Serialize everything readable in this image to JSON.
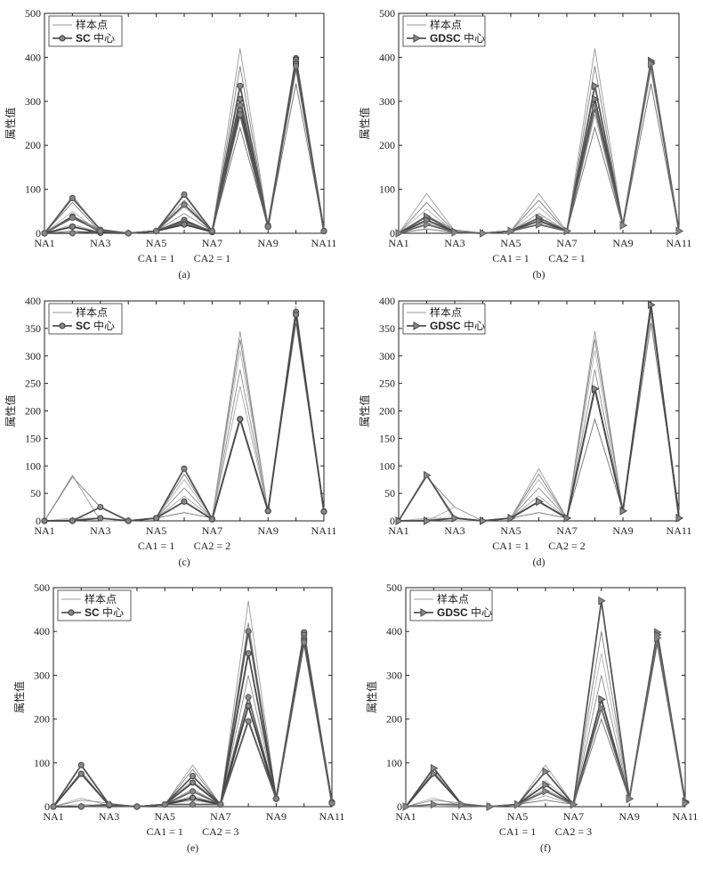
{
  "figure_caption": "",
  "chart_data": [
    {
      "type": "line",
      "caption": "(a)",
      "ylabel": "属性值",
      "ylim": [
        0,
        500
      ],
      "yticks": [
        0,
        100,
        200,
        300,
        400,
        500
      ],
      "xlabels": [
        "NA1",
        "NA3",
        "NA5",
        "NA7",
        "NA9",
        "NA11"
      ],
      "cat_notes": [
        "CA1 = 1",
        "CA2 = 1"
      ],
      "legend": {
        "sample": "样本点",
        "center_prefix": "SC",
        "center_suffix": "中心"
      },
      "center_marker": "circle",
      "sample_series": [
        [
          0,
          85,
          5,
          0,
          5,
          90,
          5,
          420,
          18,
          390,
          5
        ],
        [
          0,
          70,
          3,
          0,
          5,
          75,
          3,
          380,
          15,
          385,
          5
        ],
        [
          0,
          50,
          2,
          0,
          5,
          60,
          5,
          340,
          15,
          380,
          5
        ],
        [
          0,
          40,
          8,
          0,
          5,
          45,
          5,
          300,
          18,
          375,
          5
        ],
        [
          0,
          20,
          2,
          0,
          5,
          30,
          3,
          270,
          15,
          370,
          5
        ],
        [
          0,
          5,
          1,
          0,
          5,
          20,
          5,
          240,
          15,
          340,
          5
        ]
      ],
      "center_series": [
        [
          0,
          80,
          8,
          0,
          5,
          88,
          5,
          335,
          15,
          398,
          5
        ],
        [
          0,
          38,
          3,
          0,
          5,
          30,
          3,
          305,
          15,
          395,
          5
        ],
        [
          0,
          35,
          5,
          0,
          5,
          25,
          5,
          290,
          18,
          390,
          5
        ],
        [
          0,
          15,
          1,
          0,
          5,
          20,
          3,
          280,
          15,
          385,
          5
        ],
        [
          0,
          0,
          5,
          0,
          5,
          65,
          5,
          270,
          15,
          380,
          5
        ]
      ]
    },
    {
      "type": "line",
      "caption": "(b)",
      "ylabel": "属性值",
      "ylim": [
        0,
        500
      ],
      "yticks": [
        0,
        100,
        200,
        300,
        400,
        500
      ],
      "xlabels": [
        "NA1",
        "NA3",
        "NA5",
        "NA7",
        "NA9",
        "NA11"
      ],
      "cat_notes": [
        "CA1 = 1",
        "CA2 = 1"
      ],
      "legend": {
        "sample": "样本点",
        "center_prefix": "GDSC",
        "center_suffix": "中心"
      },
      "center_marker": "triangle",
      "sample_series": [
        [
          0,
          90,
          5,
          0,
          5,
          90,
          5,
          420,
          18,
          390,
          5
        ],
        [
          0,
          70,
          3,
          0,
          5,
          75,
          3,
          380,
          15,
          385,
          5
        ],
        [
          0,
          55,
          2,
          0,
          5,
          60,
          5,
          340,
          15,
          380,
          5
        ],
        [
          0,
          40,
          8,
          0,
          5,
          45,
          5,
          300,
          18,
          375,
          5
        ],
        [
          0,
          25,
          2,
          0,
          5,
          30,
          3,
          270,
          15,
          370,
          5
        ],
        [
          0,
          10,
          1,
          0,
          5,
          20,
          5,
          240,
          15,
          340,
          5
        ]
      ],
      "center_series": [
        [
          0,
          38,
          3,
          0,
          5,
          35,
          5,
          335,
          18,
          392,
          5
        ],
        [
          0,
          30,
          3,
          0,
          5,
          28,
          5,
          305,
          18,
          388,
          5
        ],
        [
          0,
          20,
          2,
          0,
          5,
          20,
          5,
          285,
          18,
          385,
          5
        ]
      ]
    },
    {
      "type": "line",
      "caption": "(c)",
      "ylabel": "属性值",
      "ylim": [
        0,
        400
      ],
      "yticks": [
        0,
        50,
        100,
        150,
        200,
        250,
        300,
        350,
        400
      ],
      "xlabels": [
        "NA1",
        "NA3",
        "NA5",
        "NA7",
        "NA9",
        "NA11"
      ],
      "cat_notes": [
        "CA1 = 1",
        "CA2 = 2"
      ],
      "legend": {
        "sample": "样本点",
        "center_prefix": "SC",
        "center_suffix": "中心"
      },
      "center_marker": "circle",
      "sample_series": [
        [
          0,
          83,
          0,
          0,
          5,
          95,
          5,
          345,
          18,
          390,
          15
        ],
        [
          0,
          80,
          25,
          0,
          5,
          85,
          5,
          330,
          18,
          385,
          17
        ],
        [
          0,
          5,
          5,
          0,
          5,
          75,
          5,
          310,
          18,
          380,
          16
        ],
        [
          0,
          2,
          5,
          0,
          5,
          60,
          5,
          275,
          18,
          378,
          17
        ],
        [
          0,
          0,
          25,
          0,
          5,
          45,
          5,
          245,
          18,
          375,
          15
        ],
        [
          0,
          0,
          5,
          0,
          5,
          15,
          5,
          185,
          18,
          360,
          17
        ]
      ],
      "center_series": [
        [
          0,
          0,
          25,
          0,
          5,
          95,
          3,
          185,
          18,
          380,
          17
        ],
        [
          0,
          0,
          5,
          0,
          5,
          35,
          3,
          185,
          18,
          375,
          17
        ]
      ]
    },
    {
      "type": "line",
      "caption": "(d)",
      "ylabel": "属性值",
      "ylim": [
        0,
        400
      ],
      "yticks": [
        0,
        50,
        100,
        150,
        200,
        250,
        300,
        350,
        400
      ],
      "xlabels": [
        "NA1",
        "NA3",
        "NA5",
        "NA7",
        "NA9",
        "NA11"
      ],
      "cat_notes": [
        "CA1 = 1",
        "CA2 = 2"
      ],
      "legend": {
        "sample": "样本点",
        "center_prefix": "GDSC",
        "center_suffix": "中心"
      },
      "center_marker": "triangle",
      "sample_series": [
        [
          0,
          83,
          0,
          0,
          5,
          95,
          5,
          345,
          18,
          390,
          15
        ],
        [
          0,
          80,
          25,
          0,
          5,
          85,
          5,
          330,
          18,
          385,
          17
        ],
        [
          0,
          5,
          5,
          0,
          5,
          75,
          5,
          310,
          18,
          380,
          16
        ],
        [
          0,
          2,
          5,
          0,
          5,
          60,
          5,
          275,
          18,
          378,
          17
        ],
        [
          0,
          0,
          25,
          0,
          5,
          45,
          5,
          245,
          18,
          375,
          15
        ],
        [
          0,
          0,
          5,
          0,
          5,
          15,
          5,
          185,
          18,
          360,
          17
        ]
      ],
      "center_series": [
        [
          0,
          83,
          5,
          0,
          5,
          35,
          5,
          240,
          18,
          393,
          5
        ],
        [
          0,
          0,
          5,
          0,
          5,
          35,
          5,
          240,
          18,
          393,
          5
        ]
      ]
    },
    {
      "type": "line",
      "caption": "(e)",
      "ylabel": "属性值",
      "ylim": [
        0,
        500
      ],
      "yticks": [
        0,
        100,
        200,
        300,
        400,
        500
      ],
      "xlabels": [
        "NA1",
        "NA3",
        "NA5",
        "NA7",
        "NA9",
        "NA11"
      ],
      "cat_notes": [
        "CA1 = 1",
        "CA2 = 3"
      ],
      "legend": {
        "sample": "样本点",
        "center_prefix": "SC",
        "center_suffix": "中心"
      },
      "center_marker": "circle",
      "sample_series": [
        [
          0,
          95,
          5,
          0,
          5,
          95,
          5,
          470,
          18,
          395,
          8
        ],
        [
          0,
          80,
          3,
          0,
          5,
          85,
          5,
          420,
          18,
          390,
          10
        ],
        [
          0,
          20,
          2,
          0,
          5,
          60,
          5,
          350,
          18,
          385,
          8
        ],
        [
          0,
          15,
          8,
          0,
          5,
          40,
          5,
          300,
          18,
          380,
          10
        ],
        [
          0,
          5,
          2,
          0,
          5,
          25,
          5,
          250,
          18,
          375,
          8
        ],
        [
          0,
          0,
          1,
          0,
          5,
          15,
          5,
          200,
          18,
          370,
          10
        ]
      ],
      "center_series": [
        [
          0,
          95,
          5,
          0,
          5,
          70,
          5,
          400,
          18,
          398,
          8
        ],
        [
          0,
          75,
          3,
          0,
          5,
          55,
          5,
          350,
          18,
          392,
          10
        ],
        [
          0,
          0,
          5,
          0,
          5,
          35,
          5,
          250,
          18,
          385,
          8
        ],
        [
          0,
          0,
          5,
          0,
          5,
          20,
          5,
          230,
          18,
          380,
          10
        ],
        [
          0,
          0,
          5,
          0,
          5,
          5,
          5,
          195,
          18,
          375,
          8
        ]
      ]
    },
    {
      "type": "line",
      "caption": "(f)",
      "ylabel": "属性值",
      "ylim": [
        0,
        500
      ],
      "yticks": [
        0,
        100,
        200,
        300,
        400,
        500
      ],
      "xlabels": [
        "NA1",
        "NA3",
        "NA5",
        "NA7",
        "NA9",
        "NA11"
      ],
      "cat_notes": [
        "CA1 = 1",
        "CA2 = 3"
      ],
      "legend": {
        "sample": "样本点",
        "center_prefix": "GDSC",
        "center_suffix": "中心"
      },
      "center_marker": "triangle",
      "sample_series": [
        [
          0,
          90,
          5,
          0,
          5,
          95,
          5,
          470,
          18,
          398,
          15
        ],
        [
          0,
          80,
          3,
          0,
          5,
          80,
          5,
          400,
          18,
          390,
          10
        ],
        [
          0,
          20,
          2,
          0,
          5,
          60,
          5,
          350,
          18,
          385,
          8
        ],
        [
          0,
          15,
          8,
          0,
          5,
          40,
          5,
          300,
          18,
          380,
          10
        ],
        [
          0,
          5,
          2,
          0,
          5,
          25,
          5,
          250,
          18,
          375,
          8
        ],
        [
          0,
          0,
          1,
          0,
          5,
          15,
          5,
          200,
          18,
          370,
          10
        ]
      ],
      "center_series": [
        [
          0,
          88,
          5,
          0,
          5,
          80,
          5,
          470,
          18,
          398,
          12
        ],
        [
          0,
          75,
          5,
          0,
          5,
          50,
          5,
          245,
          18,
          392,
          10
        ],
        [
          0,
          5,
          5,
          0,
          5,
          35,
          5,
          225,
          18,
          385,
          8
        ]
      ]
    }
  ]
}
